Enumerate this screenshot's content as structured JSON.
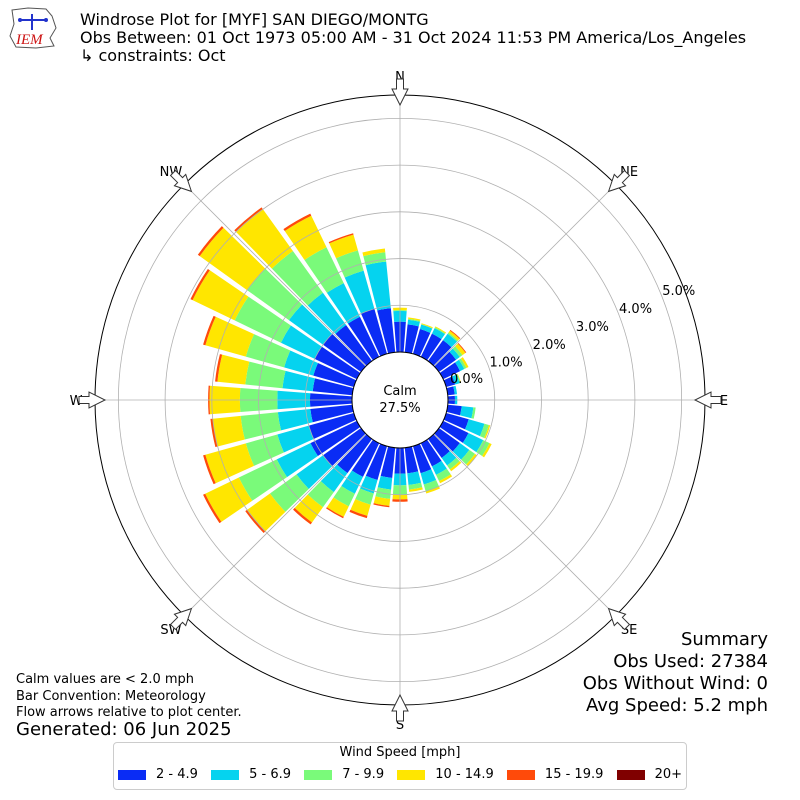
{
  "logo_text": "IEM",
  "title": {
    "line1": "Windrose Plot for [MYF] SAN DIEGO/MONTG",
    "line2": "Obs Between: 01 Oct 1973 05:00 AM - 31 Oct 2024 11:53 PM America/Los_Angeles",
    "line3": "↳ constraints: Oct"
  },
  "calm": {
    "label": "Calm",
    "value": "27.5%"
  },
  "notes": {
    "calm_note": "Calm values are < 2.0 mph",
    "bar_convention": "Bar Convention: Meteorology",
    "flow_note": "Flow arrows relative to plot center.",
    "generated": "Generated: 06 Jun 2025"
  },
  "summary": {
    "title": "Summary",
    "obs_used": "Obs Used: 27384",
    "obs_without_wind": "Obs Without Wind: 0",
    "avg_speed": "Avg Speed: 5.2 mph"
  },
  "legend": {
    "title": "Wind Speed [mph]",
    "items": [
      {
        "label": "2 - 4.9",
        "color": "#0a2cf5"
      },
      {
        "label": "5 - 6.9",
        "color": "#05d3ef"
      },
      {
        "label": "7 - 9.9",
        "color": "#7afa7a"
      },
      {
        "label": "10 - 14.9",
        "color": "#ffe600"
      },
      {
        "label": "15 - 19.9",
        "color": "#ff4a0a"
      },
      {
        "label": "20+",
        "color": "#800000"
      }
    ]
  },
  "chart_data": {
    "type": "windrose",
    "center": "Calm 27.5%",
    "radial_ticks": [
      "0.0%",
      "1.0%",
      "2.0%",
      "3.0%",
      "4.0%",
      "5.0%"
    ],
    "radial_values": [
      0,
      1,
      2,
      3,
      4,
      5
    ],
    "rlim": [
      0,
      5.5
    ],
    "compass_labels": [
      "N",
      "NE",
      "E",
      "SE",
      "S",
      "SW",
      "W",
      "NW"
    ],
    "bin_width_deg": 10,
    "bin_centers_deg": [
      0,
      10,
      20,
      30,
      40,
      50,
      60,
      70,
      80,
      90,
      100,
      110,
      120,
      130,
      140,
      150,
      160,
      170,
      180,
      190,
      200,
      210,
      220,
      230,
      240,
      250,
      260,
      270,
      280,
      290,
      300,
      310,
      320,
      330,
      340,
      350
    ],
    "speed_bins": [
      "2 - 4.9",
      "5 - 6.9",
      "7 - 9.9",
      "10 - 14.9",
      "15 - 19.9",
      "20+"
    ],
    "bin_colors": [
      "#0a2cf5",
      "#05d3ef",
      "#7afa7a",
      "#ffe600",
      "#ff4a0a",
      "#800000"
    ],
    "cumulative_percent": [
      [
        0.65,
        0.88,
        0.9,
        0.95,
        0.95,
        0.95
      ],
      [
        0.6,
        0.7,
        0.72,
        0.75,
        0.75,
        0.75
      ],
      [
        0.55,
        0.65,
        0.66,
        0.68,
        0.68,
        0.68
      ],
      [
        0.55,
        0.68,
        0.7,
        0.72,
        0.72,
        0.72
      ],
      [
        0.55,
        0.72,
        0.75,
        0.8,
        0.82,
        0.82
      ],
      [
        0.45,
        0.55,
        0.62,
        0.7,
        0.72,
        0.72
      ],
      [
        0.4,
        0.5,
        0.55,
        0.6,
        0.6,
        0.6
      ],
      [
        0.2,
        0.3,
        0.32,
        0.33,
        0.33,
        0.33
      ],
      [
        0.15,
        0.2,
        0.2,
        0.2,
        0.2,
        0.2
      ],
      [
        0.15,
        0.2,
        0.2,
        0.2,
        0.2,
        0.2
      ],
      [
        0.3,
        0.55,
        0.6,
        0.6,
        0.6,
        0.6
      ],
      [
        0.5,
        0.85,
        0.95,
        0.98,
        0.98,
        0.98
      ],
      [
        0.6,
        0.95,
        1.1,
        1.15,
        1.15,
        1.15
      ],
      [
        0.55,
        0.8,
        0.95,
        1.0,
        1.0,
        1.0
      ],
      [
        0.5,
        0.7,
        0.8,
        0.85,
        0.85,
        0.85
      ],
      [
        0.55,
        0.75,
        0.9,
        0.95,
        0.95,
        0.95
      ],
      [
        0.6,
        0.85,
        1.0,
        1.05,
        1.05,
        1.05
      ],
      [
        0.55,
        0.8,
        0.9,
        0.95,
        0.95,
        0.95
      ],
      [
        0.55,
        0.8,
        1.0,
        1.1,
        1.15,
        1.15
      ],
      [
        0.65,
        0.9,
        1.1,
        1.25,
        1.28,
        1.28
      ],
      [
        0.75,
        1.05,
        1.3,
        1.55,
        1.6,
        1.6
      ],
      [
        0.8,
        1.2,
        1.5,
        1.75,
        1.78,
        1.78
      ],
      [
        0.9,
        1.4,
        1.8,
        2.2,
        2.25,
        2.25
      ],
      [
        1.0,
        1.7,
        2.4,
        3.0,
        3.05,
        3.05
      ],
      [
        1.1,
        1.9,
        2.8,
        3.6,
        3.65,
        3.65
      ],
      [
        1.0,
        1.7,
        2.4,
        3.3,
        3.35,
        3.35
      ],
      [
        0.9,
        1.6,
        2.4,
        3.0,
        3.05,
        3.05
      ],
      [
        0.9,
        1.6,
        2.4,
        3.05,
        3.08,
        3.08
      ],
      [
        0.85,
        1.5,
        2.3,
        2.9,
        2.95,
        2.95
      ],
      [
        0.9,
        1.55,
        2.4,
        3.3,
        3.35,
        3.35
      ],
      [
        1.0,
        1.8,
        2.9,
        3.9,
        3.95,
        3.95
      ],
      [
        1.0,
        1.9,
        3.0,
        4.25,
        4.3,
        4.3
      ],
      [
        0.95,
        1.8,
        2.9,
        4.0,
        4.05,
        4.05
      ],
      [
        0.95,
        1.75,
        2.6,
        3.35,
        3.4,
        3.4
      ],
      [
        1.0,
        1.85,
        2.3,
        2.65,
        2.68,
        2.68
      ],
      [
        0.95,
        1.95,
        2.15,
        2.23,
        2.23,
        2.23
      ]
    ]
  }
}
